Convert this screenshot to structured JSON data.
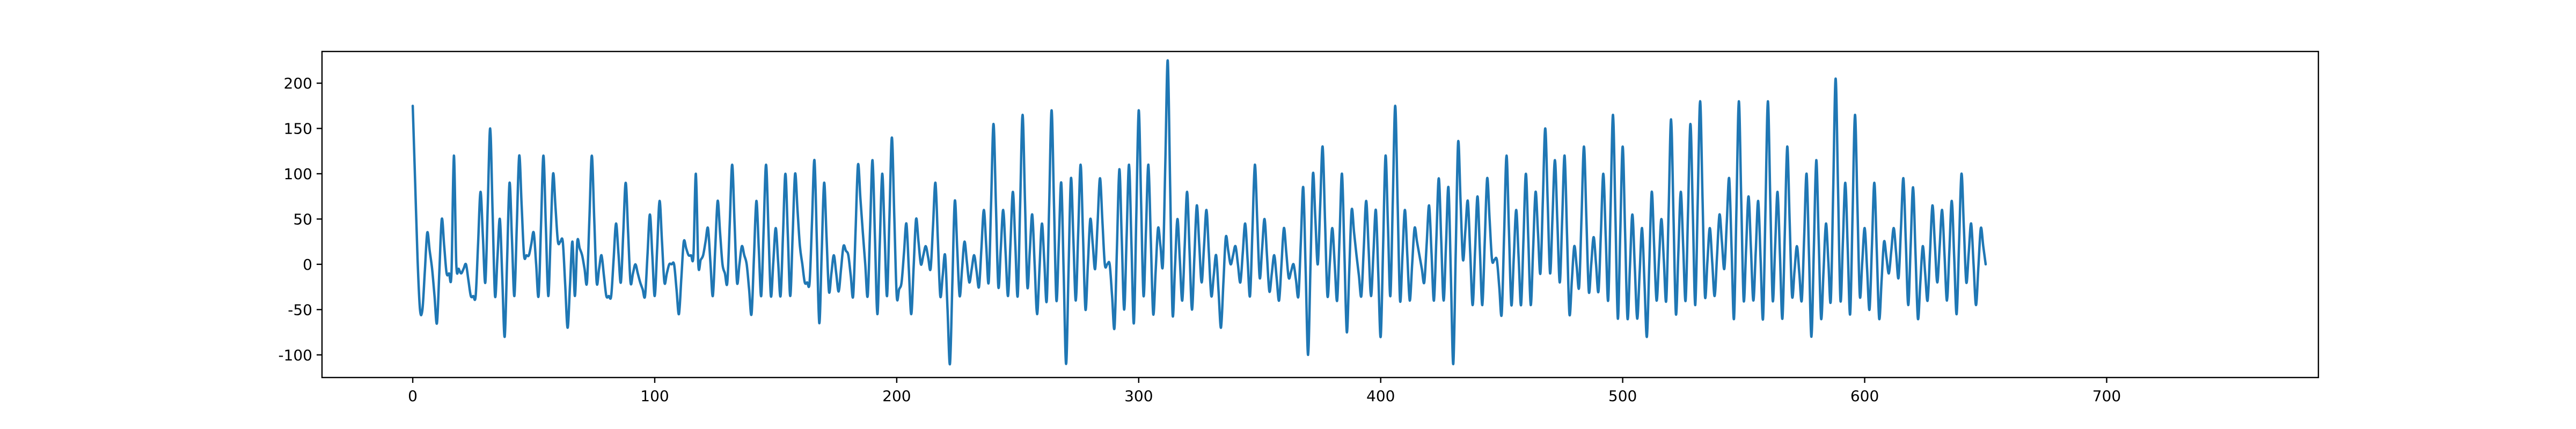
{
  "chart_data": {
    "type": "line",
    "title": "",
    "xlabel": "",
    "ylabel": "",
    "xlim": [
      -37.5,
      787.5
    ],
    "ylim": [
      -125,
      235
    ],
    "xticks": [
      0,
      100,
      200,
      300,
      400,
      500,
      600,
      700
    ],
    "yticks": [
      -100,
      -50,
      0,
      50,
      100,
      150,
      200
    ],
    "grid": false,
    "legend": "none",
    "colors": {
      "series": "#1f77b4",
      "axes": "#000000",
      "background": "#ffffff"
    },
    "series": [
      {
        "x_start": 0,
        "x_step": 1,
        "control_points": [
          [
            0,
            175
          ],
          [
            2,
            5
          ],
          [
            3,
            -50
          ],
          [
            4,
            -50
          ],
          [
            6,
            35
          ],
          [
            8,
            -5
          ],
          [
            10,
            -65
          ],
          [
            12,
            50
          ],
          [
            14,
            -10
          ],
          [
            16,
            -10
          ],
          [
            17,
            120
          ],
          [
            18,
            0
          ],
          [
            20,
            -10
          ],
          [
            22,
            0
          ],
          [
            24,
            -35
          ],
          [
            26,
            -35
          ],
          [
            28,
            80
          ],
          [
            30,
            -20
          ],
          [
            32,
            150
          ],
          [
            34,
            -35
          ],
          [
            36,
            50
          ],
          [
            38,
            -80
          ],
          [
            40,
            90
          ],
          [
            42,
            -35
          ],
          [
            44,
            120
          ],
          [
            46,
            10
          ],
          [
            48,
            10
          ],
          [
            50,
            35
          ],
          [
            52,
            -35
          ],
          [
            54,
            120
          ],
          [
            56,
            -35
          ],
          [
            58,
            100
          ],
          [
            60,
            25
          ],
          [
            62,
            25
          ],
          [
            64,
            -70
          ],
          [
            66,
            25
          ],
          [
            67,
            -35
          ],
          [
            68,
            25
          ],
          [
            70,
            10
          ],
          [
            72,
            -20
          ],
          [
            74,
            120
          ],
          [
            76,
            -20
          ],
          [
            78,
            10
          ],
          [
            80,
            -35
          ],
          [
            82,
            -35
          ],
          [
            84,
            45
          ],
          [
            86,
            -20
          ],
          [
            88,
            90
          ],
          [
            90,
            -20
          ],
          [
            92,
            0
          ],
          [
            94,
            -20
          ],
          [
            96,
            -35
          ],
          [
            98,
            55
          ],
          [
            100,
            -35
          ],
          [
            102,
            70
          ],
          [
            104,
            -20
          ],
          [
            106,
            0
          ],
          [
            108,
            0
          ],
          [
            110,
            -55
          ],
          [
            112,
            25
          ],
          [
            114,
            10
          ],
          [
            116,
            10
          ],
          [
            117,
            100
          ],
          [
            118,
            0
          ],
          [
            120,
            10
          ],
          [
            122,
            40
          ],
          [
            124,
            -35
          ],
          [
            126,
            70
          ],
          [
            128,
            0
          ],
          [
            130,
            -20
          ],
          [
            132,
            110
          ],
          [
            134,
            -20
          ],
          [
            136,
            20
          ],
          [
            138,
            0
          ],
          [
            140,
            -55
          ],
          [
            142,
            70
          ],
          [
            144,
            -35
          ],
          [
            146,
            110
          ],
          [
            148,
            -35
          ],
          [
            150,
            40
          ],
          [
            152,
            -35
          ],
          [
            154,
            100
          ],
          [
            156,
            -35
          ],
          [
            158,
            100
          ],
          [
            160,
            20
          ],
          [
            162,
            -20
          ],
          [
            164,
            -20
          ],
          [
            166,
            115
          ],
          [
            168,
            -65
          ],
          [
            170,
            90
          ],
          [
            172,
            -30
          ],
          [
            174,
            10
          ],
          [
            176,
            -30
          ],
          [
            178,
            20
          ],
          [
            180,
            10
          ],
          [
            182,
            -35
          ],
          [
            184,
            110
          ],
          [
            186,
            35
          ],
          [
            188,
            -35
          ],
          [
            190,
            115
          ],
          [
            192,
            -55
          ],
          [
            194,
            100
          ],
          [
            196,
            -35
          ],
          [
            198,
            140
          ],
          [
            200,
            -35
          ],
          [
            202,
            -20
          ],
          [
            204,
            45
          ],
          [
            206,
            -55
          ],
          [
            208,
            50
          ],
          [
            210,
            0
          ],
          [
            212,
            20
          ],
          [
            214,
            -5
          ],
          [
            216,
            90
          ],
          [
            218,
            -35
          ],
          [
            220,
            10
          ],
          [
            222,
            -110
          ],
          [
            224,
            70
          ],
          [
            226,
            -35
          ],
          [
            228,
            25
          ],
          [
            230,
            -20
          ],
          [
            232,
            10
          ],
          [
            234,
            -25
          ],
          [
            236,
            60
          ],
          [
            238,
            -20
          ],
          [
            240,
            155
          ],
          [
            242,
            -25
          ],
          [
            244,
            60
          ],
          [
            246,
            -35
          ],
          [
            248,
            80
          ],
          [
            250,
            -35
          ],
          [
            252,
            165
          ],
          [
            254,
            -25
          ],
          [
            256,
            55
          ],
          [
            258,
            -55
          ],
          [
            260,
            45
          ],
          [
            262,
            -40
          ],
          [
            264,
            170
          ],
          [
            266,
            -40
          ],
          [
            268,
            90
          ],
          [
            270,
            -110
          ],
          [
            272,
            95
          ],
          [
            274,
            -40
          ],
          [
            276,
            110
          ],
          [
            278,
            -50
          ],
          [
            280,
            50
          ],
          [
            282,
            -5
          ],
          [
            284,
            95
          ],
          [
            286,
            0
          ],
          [
            288,
            0
          ],
          [
            290,
            -70
          ],
          [
            292,
            105
          ],
          [
            294,
            -50
          ],
          [
            296,
            110
          ],
          [
            298,
            -65
          ],
          [
            300,
            170
          ],
          [
            302,
            -35
          ],
          [
            304,
            110
          ],
          [
            306,
            -55
          ],
          [
            308,
            40
          ],
          [
            310,
            0
          ],
          [
            312,
            225
          ],
          [
            314,
            -55
          ],
          [
            316,
            50
          ],
          [
            318,
            -40
          ],
          [
            320,
            80
          ],
          [
            322,
            -50
          ],
          [
            324,
            65
          ],
          [
            326,
            -20
          ],
          [
            328,
            60
          ],
          [
            330,
            -35
          ],
          [
            332,
            10
          ],
          [
            334,
            -70
          ],
          [
            336,
            30
          ],
          [
            338,
            0
          ],
          [
            340,
            20
          ],
          [
            342,
            -20
          ],
          [
            344,
            45
          ],
          [
            346,
            -35
          ],
          [
            348,
            110
          ],
          [
            350,
            -15
          ],
          [
            352,
            50
          ],
          [
            354,
            -30
          ],
          [
            356,
            10
          ],
          [
            358,
            -40
          ],
          [
            360,
            40
          ],
          [
            362,
            -15
          ],
          [
            364,
            0
          ],
          [
            366,
            -35
          ],
          [
            368,
            85
          ],
          [
            370,
            -100
          ],
          [
            372,
            100
          ],
          [
            374,
            0
          ],
          [
            376,
            130
          ],
          [
            378,
            -35
          ],
          [
            380,
            40
          ],
          [
            382,
            -40
          ],
          [
            384,
            100
          ],
          [
            386,
            -75
          ],
          [
            388,
            60
          ],
          [
            390,
            10
          ],
          [
            392,
            -35
          ],
          [
            394,
            70
          ],
          [
            396,
            -35
          ],
          [
            398,
            60
          ],
          [
            400,
            -80
          ],
          [
            402,
            120
          ],
          [
            404,
            -35
          ],
          [
            406,
            175
          ],
          [
            408,
            -40
          ],
          [
            410,
            60
          ],
          [
            412,
            -40
          ],
          [
            414,
            40
          ],
          [
            416,
            10
          ],
          [
            418,
            -20
          ],
          [
            420,
            65
          ],
          [
            422,
            -40
          ],
          [
            424,
            95
          ],
          [
            426,
            -40
          ],
          [
            428,
            85
          ],
          [
            430,
            -110
          ],
          [
            432,
            135
          ],
          [
            434,
            5
          ],
          [
            436,
            70
          ],
          [
            438,
            -45
          ],
          [
            440,
            75
          ],
          [
            442,
            -45
          ],
          [
            444,
            95
          ],
          [
            446,
            5
          ],
          [
            448,
            5
          ],
          [
            450,
            -55
          ],
          [
            452,
            120
          ],
          [
            454,
            -45
          ],
          [
            456,
            60
          ],
          [
            458,
            -45
          ],
          [
            460,
            100
          ],
          [
            462,
            -45
          ],
          [
            464,
            80
          ],
          [
            466,
            -10
          ],
          [
            468,
            150
          ],
          [
            470,
            -10
          ],
          [
            472,
            115
          ],
          [
            474,
            -20
          ],
          [
            476,
            120
          ],
          [
            478,
            -55
          ],
          [
            480,
            20
          ],
          [
            482,
            -25
          ],
          [
            484,
            130
          ],
          [
            486,
            -30
          ],
          [
            488,
            30
          ],
          [
            490,
            -30
          ],
          [
            492,
            100
          ],
          [
            494,
            -40
          ],
          [
            496,
            165
          ],
          [
            498,
            -60
          ],
          [
            500,
            130
          ],
          [
            502,
            -60
          ],
          [
            504,
            55
          ],
          [
            506,
            -60
          ],
          [
            508,
            40
          ],
          [
            510,
            -80
          ],
          [
            512,
            80
          ],
          [
            514,
            -40
          ],
          [
            516,
            50
          ],
          [
            518,
            -40
          ],
          [
            520,
            160
          ],
          [
            522,
            -55
          ],
          [
            524,
            80
          ],
          [
            526,
            -40
          ],
          [
            528,
            155
          ],
          [
            530,
            -45
          ],
          [
            532,
            180
          ],
          [
            534,
            -35
          ],
          [
            536,
            40
          ],
          [
            538,
            -35
          ],
          [
            540,
            55
          ],
          [
            542,
            -5
          ],
          [
            544,
            95
          ],
          [
            546,
            -60
          ],
          [
            548,
            180
          ],
          [
            550,
            -40
          ],
          [
            552,
            75
          ],
          [
            554,
            -40
          ],
          [
            556,
            70
          ],
          [
            558,
            -60
          ],
          [
            560,
            180
          ],
          [
            562,
            -40
          ],
          [
            564,
            80
          ],
          [
            566,
            -60
          ],
          [
            568,
            130
          ],
          [
            570,
            -35
          ],
          [
            572,
            20
          ],
          [
            574,
            -40
          ],
          [
            576,
            100
          ],
          [
            578,
            -80
          ],
          [
            580,
            115
          ],
          [
            582,
            -60
          ],
          [
            584,
            45
          ],
          [
            586,
            -40
          ],
          [
            588,
            205
          ],
          [
            590,
            -40
          ],
          [
            592,
            90
          ],
          [
            594,
            -55
          ],
          [
            596,
            165
          ],
          [
            598,
            -35
          ],
          [
            600,
            40
          ],
          [
            602,
            -50
          ],
          [
            604,
            90
          ],
          [
            606,
            -60
          ],
          [
            608,
            25
          ],
          [
            610,
            -10
          ],
          [
            612,
            40
          ],
          [
            614,
            -15
          ],
          [
            616,
            95
          ],
          [
            618,
            -45
          ],
          [
            620,
            85
          ],
          [
            622,
            -60
          ],
          [
            624,
            20
          ],
          [
            626,
            -40
          ],
          [
            628,
            65
          ],
          [
            630,
            -20
          ],
          [
            632,
            60
          ],
          [
            634,
            -40
          ],
          [
            636,
            70
          ],
          [
            638,
            -55
          ],
          [
            640,
            100
          ],
          [
            642,
            -20
          ],
          [
            644,
            45
          ],
          [
            646,
            -45
          ],
          [
            648,
            40
          ],
          [
            650,
            0
          ]
        ]
      }
    ]
  }
}
